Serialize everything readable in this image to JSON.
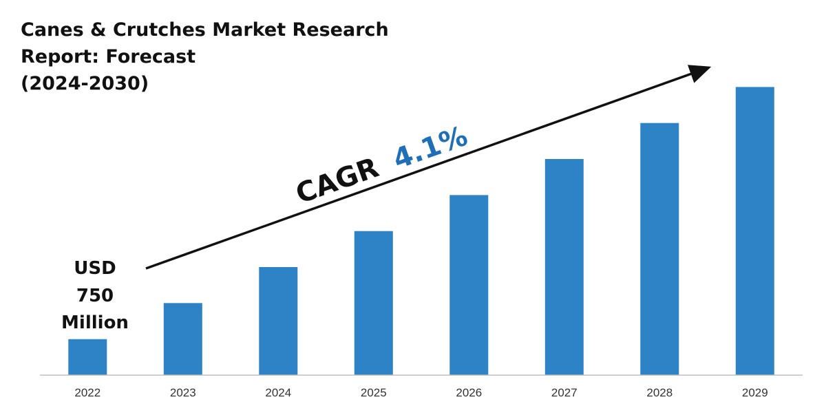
{
  "title_lines": [
    "Canes & Crutches Market Research",
    "Report: Forecast",
    "(2024-2030)"
  ],
  "annotation": {
    "start_value_lines": [
      "USD",
      "750",
      "Million"
    ],
    "cagr_label": "CAGR",
    "cagr_value": "4.1%"
  },
  "colors": {
    "bar": "#2E83C6",
    "cagr_value": "#1F6FB8",
    "text": "#111111",
    "axis": "#BFBFBF"
  },
  "chart_data": {
    "type": "bar",
    "title": "Canes & Crutches Market Research Report: Forecast (2024-2030)",
    "categories": [
      "2022",
      "2023",
      "2024",
      "2025",
      "2026",
      "2027",
      "2028",
      "2029"
    ],
    "values": [
      1,
      2,
      3,
      4,
      5,
      6,
      7,
      8
    ],
    "ylim": [
      0,
      8.6
    ],
    "xlabel": "",
    "ylabel": "",
    "grid": false,
    "legend": "none",
    "annotations": [
      "USD 750 Million",
      "CAGR 4.1%"
    ]
  }
}
